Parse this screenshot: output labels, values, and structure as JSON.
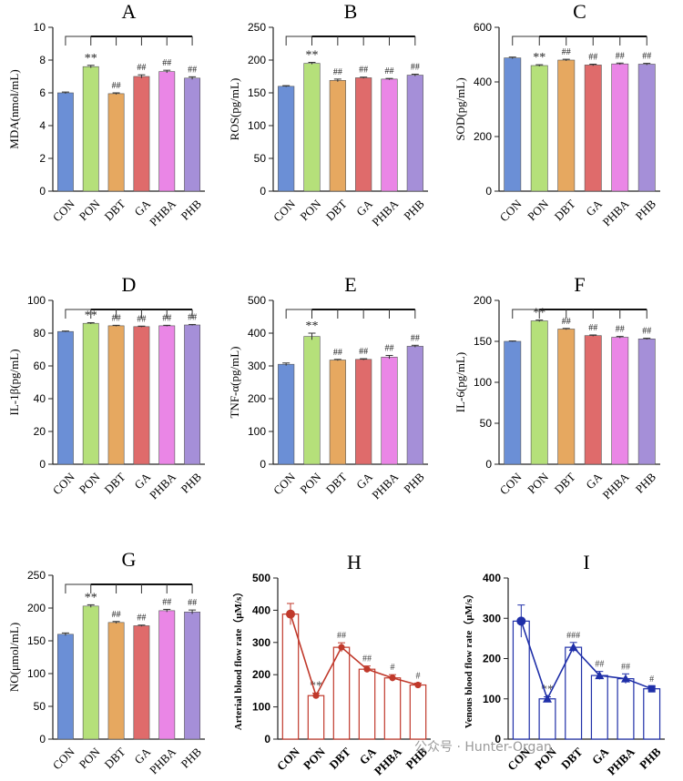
{
  "watermark": "公众号 · Hunter-Organ",
  "chart_data": [
    {
      "panel": "A",
      "type": "bar",
      "ylabel": "MDA(nmol/mL)",
      "ylim": [
        0,
        10
      ],
      "yticks": [
        0,
        2,
        4,
        6,
        8,
        10
      ],
      "categories": [
        "CON",
        "PON",
        "DBT",
        "GA",
        "PHBA",
        "PHB"
      ],
      "values": [
        6.0,
        7.6,
        5.95,
        7.0,
        7.3,
        6.9
      ],
      "errors": [
        0.05,
        0.08,
        0.05,
        0.1,
        0.08,
        0.08
      ],
      "labels": [
        "",
        "**",
        "##",
        "##",
        "##",
        "##"
      ],
      "colors": [
        "#6b8fd6",
        "#b5e07a",
        "#e6a860",
        "#df6b6b",
        "#ea86e6",
        "#a58fd8"
      ]
    },
    {
      "panel": "B",
      "type": "bar",
      "ylabel": "ROS(pg/mL)",
      "ylim": [
        0,
        250
      ],
      "yticks": [
        0,
        50,
        100,
        150,
        200,
        250
      ],
      "categories": [
        "CON",
        "PON",
        "DBT",
        "GA",
        "PHBA",
        "PHB"
      ],
      "values": [
        160,
        195,
        169,
        173,
        171,
        177
      ],
      "errors": [
        1,
        1.5,
        2,
        1,
        1,
        1.5
      ],
      "labels": [
        "",
        "**",
        "##",
        "##",
        "##",
        "##"
      ],
      "colors": [
        "#6b8fd6",
        "#b5e07a",
        "#e6a860",
        "#df6b6b",
        "#ea86e6",
        "#a58fd8"
      ]
    },
    {
      "panel": "C",
      "type": "bar",
      "ylabel": "SOD(pg/mL)",
      "ylim": [
        0,
        600
      ],
      "yticks": [
        0,
        200,
        400,
        600
      ],
      "categories": [
        "CON",
        "PON",
        "DBT",
        "GA",
        "PHBA",
        "PHB"
      ],
      "values": [
        488,
        460,
        480,
        462,
        466,
        465
      ],
      "errors": [
        3,
        3,
        3,
        3,
        3,
        3
      ],
      "labels": [
        "",
        "**",
        "##",
        "##",
        "##",
        "##"
      ],
      "colors": [
        "#6b8fd6",
        "#b5e07a",
        "#e6a860",
        "#df6b6b",
        "#ea86e6",
        "#a58fd8"
      ]
    },
    {
      "panel": "D",
      "type": "bar",
      "ylabel": "IL-1β(pg/mL)",
      "ylim": [
        0,
        100
      ],
      "yticks": [
        0,
        20,
        40,
        60,
        80,
        100
      ],
      "categories": [
        "CON",
        "PON",
        "DBT",
        "GA",
        "PHBA",
        "PHB"
      ],
      "values": [
        81,
        86,
        84.5,
        84,
        84.5,
        85
      ],
      "errors": [
        0.3,
        0.4,
        0.3,
        0.3,
        0.3,
        0.3
      ],
      "labels": [
        "",
        "**",
        "##",
        "##",
        "##",
        "##"
      ],
      "colors": [
        "#6b8fd6",
        "#b5e07a",
        "#e6a860",
        "#df6b6b",
        "#ea86e6",
        "#a58fd8"
      ]
    },
    {
      "panel": "E",
      "type": "bar",
      "ylabel": "TNF-α(pg/mL)",
      "ylim": [
        0,
        500
      ],
      "yticks": [
        0,
        100,
        200,
        300,
        400,
        500
      ],
      "categories": [
        "CON",
        "PON",
        "DBT",
        "GA",
        "PHBA",
        "PHB"
      ],
      "values": [
        305,
        390,
        318,
        320,
        327,
        360
      ],
      "errors": [
        4,
        10,
        2,
        2,
        5,
        3
      ],
      "labels": [
        "",
        "**",
        "##",
        "##",
        "##",
        "##"
      ],
      "colors": [
        "#6b8fd6",
        "#b5e07a",
        "#e6a860",
        "#df6b6b",
        "#ea86e6",
        "#a58fd8"
      ]
    },
    {
      "panel": "F",
      "type": "bar",
      "ylabel": "IL-6(pg/mL)",
      "ylim": [
        0,
        200
      ],
      "yticks": [
        0,
        50,
        100,
        150,
        200
      ],
      "categories": [
        "CON",
        "PON",
        "DBT",
        "GA",
        "PHBA",
        "PHB"
      ],
      "values": [
        150,
        175,
        165,
        157,
        155,
        153
      ],
      "errors": [
        0.5,
        1,
        0.8,
        0.8,
        1,
        0.8
      ],
      "labels": [
        "",
        "**",
        "##",
        "##",
        "##",
        "##"
      ],
      "colors": [
        "#6b8fd6",
        "#b5e07a",
        "#e6a860",
        "#df6b6b",
        "#ea86e6",
        "#a58fd8"
      ]
    },
    {
      "panel": "G",
      "type": "bar",
      "ylabel": "NO(μmol/mL)",
      "ylim": [
        0,
        250
      ],
      "yticks": [
        0,
        50,
        100,
        150,
        200,
        250
      ],
      "categories": [
        "CON",
        "PON",
        "DBT",
        "GA",
        "PHBA",
        "PHB"
      ],
      "values": [
        160,
        203,
        178,
        173,
        196,
        194
      ],
      "errors": [
        2,
        2,
        1.5,
        1,
        2,
        3
      ],
      "labels": [
        "",
        "**",
        "##",
        "##",
        "##",
        "##"
      ],
      "colors": [
        "#6b8fd6",
        "#b5e07a",
        "#e6a860",
        "#df6b6b",
        "#ea86e6",
        "#a58fd8"
      ]
    },
    {
      "panel": "H",
      "type": "bar+line",
      "ylabel": "Arterial blood flow rate（μM/s）",
      "ylim": [
        0,
        500
      ],
      "yticks": [
        0,
        100,
        200,
        300,
        400,
        500
      ],
      "categories": [
        "CON",
        "PON",
        "DBT",
        "GA",
        "PHBA",
        "PHB"
      ],
      "values": [
        388,
        135,
        285,
        217,
        190,
        168
      ],
      "errors": [
        33,
        8,
        14,
        10,
        10,
        6
      ],
      "labels": [
        "",
        "**",
        "##",
        "##",
        "#",
        "#"
      ],
      "color": "#c0392b",
      "marker": "circle"
    },
    {
      "panel": "I",
      "type": "bar+line",
      "ylabel": "Venous blood flow rate（μM/s）",
      "ylim": [
        0,
        400
      ],
      "yticks": [
        0,
        100,
        200,
        300,
        400
      ],
      "categories": [
        "CON",
        "PON",
        "DBT",
        "GA",
        "PHBA",
        "PHB"
      ],
      "values": [
        293,
        100,
        228,
        158,
        150,
        125
      ],
      "errors": [
        40,
        5,
        12,
        10,
        12,
        6
      ],
      "labels": [
        "",
        "**",
        "###",
        "##",
        "##",
        "#"
      ],
      "color": "#1f2fa8",
      "marker": "triangle"
    }
  ]
}
